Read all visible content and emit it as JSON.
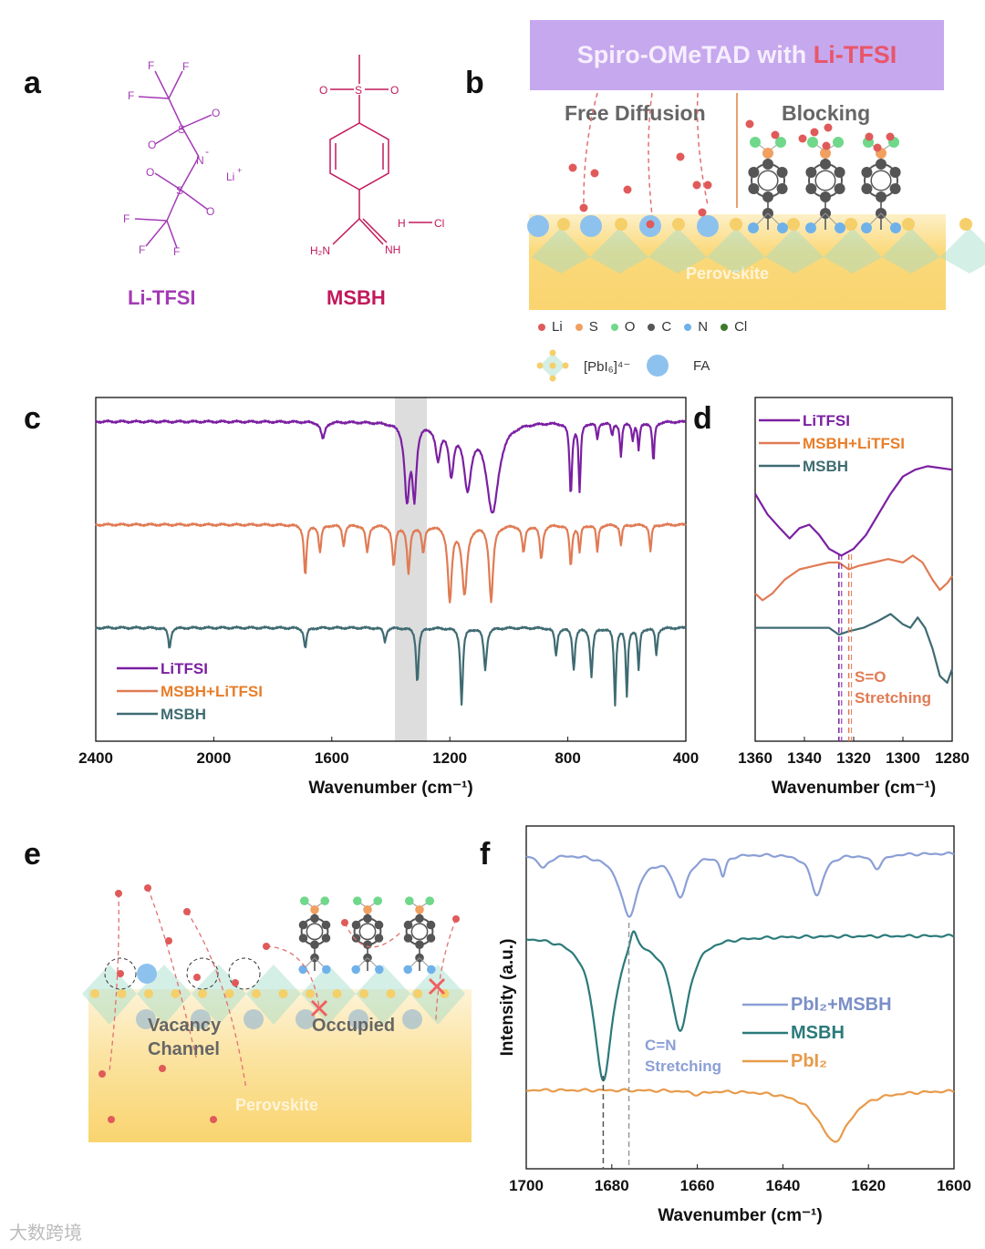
{
  "panel_labels": {
    "a": "a",
    "b": "b",
    "c": "c",
    "d": "d",
    "e": "e",
    "f": "f"
  },
  "panel_a": {
    "litfsi": {
      "name": "Li-TFSI",
      "atoms": {
        "F": "F",
        "S": "S",
        "O": "O",
        "N": "N",
        "minus": "-",
        "Li": "Li",
        "plus": "+"
      }
    },
    "msbh": {
      "name": "MSBH",
      "atoms": {
        "O": "O",
        "S": "S",
        "H": "H",
        "Cl": "Cl",
        "H2N": "H₂N",
        "NH": "NH"
      }
    },
    "colors": {
      "litfsi": "#a33ab5",
      "msbh": "#c2185b"
    }
  },
  "panel_b": {
    "banner_prefix": "Spiro-OMeTAD with ",
    "banner_highlight": "Li-TFSI",
    "free_diffusion": "Free Diffusion",
    "blocking": "Blocking",
    "perovskite": "Perovskite",
    "legend": [
      {
        "label": "Li",
        "color": "#e05a5a"
      },
      {
        "label": "S",
        "color": "#f0a060"
      },
      {
        "label": "O",
        "color": "#6fd88a"
      },
      {
        "label": "C",
        "color": "#555555"
      },
      {
        "label": "N",
        "color": "#6fb2ea"
      },
      {
        "label": "Cl",
        "color": "#3d7a2a"
      }
    ],
    "legend2": {
      "pbi6": "[PbI₆]⁴⁻",
      "fa": "FA"
    }
  },
  "panel_e": {
    "vacancy": "Vacancy",
    "channel": "Channel",
    "occupied": "Occupied",
    "perovskite": "Perovskite"
  },
  "chart_data": [
    {
      "id": "c",
      "type": "line",
      "xlabel": "Wavenumber (cm⁻¹)",
      "ylabel": "",
      "xlim": [
        2400,
        400
      ],
      "ylim": [
        0,
        100
      ],
      "xticks": [
        "2400",
        "2000",
        "1600",
        "1200",
        "800",
        "400"
      ],
      "xtick_values": [
        2400,
        2000,
        1600,
        1200,
        800,
        400
      ],
      "highlight_band": [
        1386,
        1278
      ],
      "legend_position": "bottom-left",
      "series": [
        {
          "name": "LiTFSI",
          "color": "#7b1fa2",
          "baseline": 93,
          "peaks": [
            [
              1630,
              5,
              8
            ],
            [
              1345,
              22,
              10
            ],
            [
              1320,
              20,
              8
            ],
            [
              1240,
              10,
              10
            ],
            [
              1195,
              14,
              10
            ],
            [
              1140,
              18,
              15
            ],
            [
              1055,
              26,
              25
            ],
            [
              790,
              21,
              5
            ],
            [
              760,
              20,
              4
            ],
            [
              700,
              5,
              4
            ],
            [
              650,
              4,
              4
            ],
            [
              620,
              10,
              4
            ],
            [
              580,
              5,
              4
            ],
            [
              560,
              8,
              4
            ],
            [
              510,
              12,
              4
            ]
          ]
        },
        {
          "name": "MSBH+LiTFSI",
          "color": "#e07b54",
          "baseline": 63,
          "peaks": [
            [
              1690,
              15,
              5
            ],
            [
              1640,
              8,
              5
            ],
            [
              1560,
              6,
              5
            ],
            [
              1480,
              8,
              6
            ],
            [
              1390,
              12,
              6
            ],
            [
              1340,
              14,
              6
            ],
            [
              1290,
              8,
              6
            ],
            [
              1200,
              22,
              8
            ],
            [
              1150,
              20,
              10
            ],
            [
              1060,
              22,
              8
            ],
            [
              950,
              8,
              6
            ],
            [
              890,
              10,
              6
            ],
            [
              790,
              12,
              5
            ],
            [
              760,
              8,
              4
            ],
            [
              700,
              8,
              4
            ],
            [
              620,
              6,
              4
            ],
            [
              520,
              8,
              4
            ]
          ]
        },
        {
          "name": "MSBH",
          "color": "#3f6b72",
          "baseline": 33,
          "peaks": [
            [
              2150,
              6,
              5
            ],
            [
              1690,
              6,
              5
            ],
            [
              1420,
              4,
              5
            ],
            [
              1310,
              16,
              5
            ],
            [
              1160,
              22,
              5
            ],
            [
              1080,
              12,
              6
            ],
            [
              840,
              8,
              5
            ],
            [
              780,
              12,
              5
            ],
            [
              720,
              14,
              5
            ],
            [
              640,
              22,
              4
            ],
            [
              600,
              20,
              4
            ],
            [
              560,
              12,
              4
            ],
            [
              500,
              8,
              4
            ]
          ]
        }
      ]
    },
    {
      "id": "d",
      "type": "line",
      "xlabel": "Wavenumber (cm⁻¹)",
      "xlim": [
        1360,
        1280
      ],
      "ylim": [
        0,
        100
      ],
      "xticks": [
        "1360",
        "1340",
        "1320",
        "1300",
        "1280"
      ],
      "xtick_values": [
        1360,
        1340,
        1320,
        1300,
        1280
      ],
      "legend_position": "top-left",
      "annotation": [
        "S=O",
        "Stretching"
      ],
      "markers": [
        1326,
        1322
      ],
      "series": [
        {
          "name": "LiTFSI",
          "color": "#7b1fa2",
          "points": [
            [
              1360,
              72
            ],
            [
              1355,
              66
            ],
            [
              1350,
              62
            ],
            [
              1346,
              59
            ],
            [
              1342,
              62
            ],
            [
              1338,
              63
            ],
            [
              1334,
              60
            ],
            [
              1330,
              56
            ],
            [
              1325,
              54
            ],
            [
              1320,
              56
            ],
            [
              1315,
              60
            ],
            [
              1310,
              66
            ],
            [
              1305,
              72
            ],
            [
              1300,
              77
            ],
            [
              1295,
              79
            ],
            [
              1290,
              80
            ],
            [
              1280,
              79
            ]
          ]
        },
        {
          "name": "MSBH+LiTFSI",
          "color": "#e07b54",
          "points": [
            [
              1360,
              43
            ],
            [
              1357,
              41
            ],
            [
              1353,
              43
            ],
            [
              1348,
              47
            ],
            [
              1342,
              50
            ],
            [
              1336,
              51
            ],
            [
              1330,
              52
            ],
            [
              1326,
              52
            ],
            [
              1322,
              50
            ],
            [
              1318,
              51
            ],
            [
              1312,
              52
            ],
            [
              1306,
              53
            ],
            [
              1300,
              52
            ],
            [
              1296,
              54
            ],
            [
              1292,
              52
            ],
            [
              1288,
              47
            ],
            [
              1285,
              44
            ],
            [
              1282,
              46
            ],
            [
              1280,
              48
            ]
          ]
        },
        {
          "name": "MSBH",
          "color": "#3f6b72",
          "points": [
            [
              1360,
              33
            ],
            [
              1350,
              33
            ],
            [
              1340,
              33
            ],
            [
              1330,
              33
            ],
            [
              1326,
              31
            ],
            [
              1322,
              32
            ],
            [
              1316,
              33
            ],
            [
              1310,
              35
            ],
            [
              1305,
              37
            ],
            [
              1300,
              34
            ],
            [
              1297,
              33
            ],
            [
              1294,
              36
            ],
            [
              1291,
              33
            ],
            [
              1288,
              27
            ],
            [
              1285,
              19
            ],
            [
              1282,
              17
            ],
            [
              1280,
              21
            ]
          ]
        }
      ]
    },
    {
      "id": "f",
      "type": "line",
      "xlabel": "Wavenumber (cm⁻¹)",
      "ylabel": "Intensity (a.u.)",
      "xlim": [
        1700,
        1600
      ],
      "ylim": [
        0,
        100
      ],
      "xticks": [
        "1700",
        "1680",
        "1660",
        "1640",
        "1620",
        "1600"
      ],
      "xtick_values": [
        1700,
        1680,
        1660,
        1640,
        1620,
        1600
      ],
      "legend_position": "center-right",
      "annotation": [
        "C=N",
        "Stretching"
      ],
      "markers": [
        1682,
        1676
      ],
      "series": [
        {
          "name": "PbI₂+MSBH",
          "color": "#8b9fd6",
          "baseline": 92,
          "peaks": [
            [
              1696,
              4,
              1.5
            ],
            [
              1676,
              18,
              2.5
            ],
            [
              1664,
              12,
              2
            ],
            [
              1654,
              6,
              0.8
            ],
            [
              1632,
              12,
              1.8
            ],
            [
              1618,
              4,
              1.5
            ]
          ]
        },
        {
          "name": "MSBH",
          "color": "#2b7a7a",
          "baseline": 68,
          "peaks": [
            [
              1682,
              42,
              2.6
            ],
            [
              1664,
              27,
              2.6
            ],
            [
              1675,
              -8,
              1.2
            ]
          ]
        },
        {
          "name": "PbI₂",
          "color": "#e89a4a",
          "baseline": 23,
          "peaks": [
            [
              1628,
              15,
              4.5
            ],
            [
              1660,
              1,
              2
            ]
          ]
        }
      ]
    }
  ],
  "watermark": "大数跨境"
}
